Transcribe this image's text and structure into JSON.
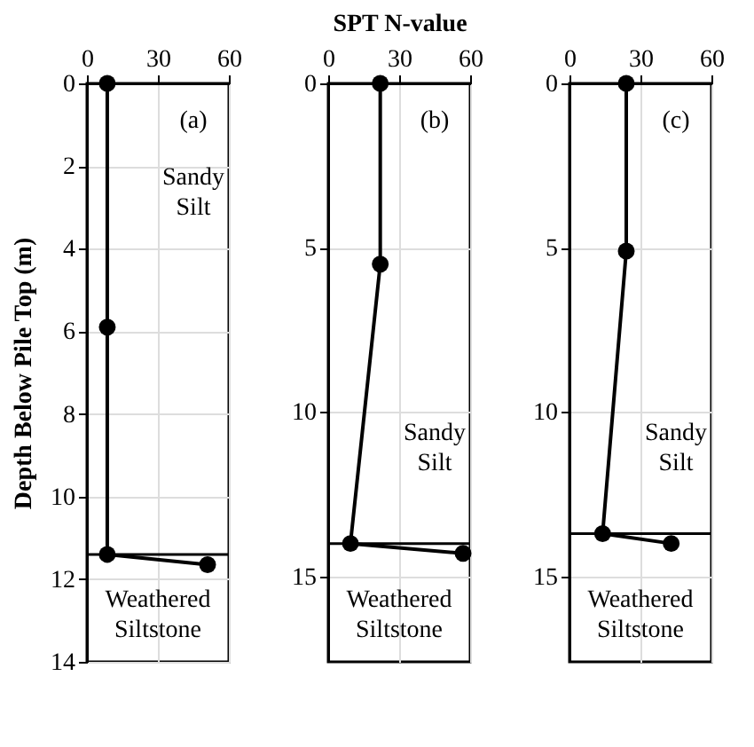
{
  "chart_data": [
    {
      "type": "line",
      "ylabel": "Depth Below Pile Top (m)",
      "x": [
        8.6,
        8.6,
        8.6,
        51
      ],
      "values": [
        0,
        5.9,
        11.4,
        11.65
      ],
      "color": "#000000",
      "marker": "circle",
      "line_style": "solid",
      "xlim": [
        0,
        60
      ],
      "xticks": [
        0,
        30,
        60
      ],
      "ylim": [
        14,
        0
      ],
      "yticks": [
        0,
        2,
        4,
        6,
        8,
        10,
        12,
        14
      ],
      "grid": true,
      "ref_lines": [
        {
          "axis": "y",
          "value": 11.4,
          "color": "#000000"
        }
      ],
      "annotations": [
        "(a)",
        "Sandy\nSilt",
        "Weathered\nSiltstone"
      ]
    },
    {
      "type": "line",
      "xlabel": "SPT N-value",
      "x": [
        22,
        22,
        9.4,
        57
      ],
      "values": [
        0,
        5.5,
        14.0,
        14.3
      ],
      "color": "#000000",
      "marker": "circle",
      "line_style": "solid",
      "xlim": [
        0,
        60
      ],
      "xticks": [
        0,
        30,
        60
      ],
      "ylim": [
        17.6,
        0
      ],
      "yticks": [
        0,
        5,
        10,
        15
      ],
      "grid": true,
      "ref_lines": [
        {
          "axis": "y",
          "value": 14.0,
          "color": "#000000"
        }
      ],
      "annotations": [
        "(b)",
        "Sandy\nSilt",
        "Weathered\nSiltstone"
      ]
    },
    {
      "type": "line",
      "x": [
        24,
        24,
        14,
        43
      ],
      "values": [
        0,
        5.1,
        13.7,
        14.0
      ],
      "color": "#000000",
      "marker": "circle",
      "line_style": "solid",
      "xlim": [
        0,
        60
      ],
      "xticks": [
        0,
        30,
        60
      ],
      "ylim": [
        17.6,
        0
      ],
      "yticks": [
        0,
        5,
        10,
        15
      ],
      "grid": true,
      "ref_lines": [
        {
          "axis": "y",
          "value": 13.7,
          "color": "#000000"
        }
      ],
      "annotations": [
        "(c)",
        "Sandy\nSilt",
        "Weathered\nSiltstone"
      ]
    }
  ]
}
